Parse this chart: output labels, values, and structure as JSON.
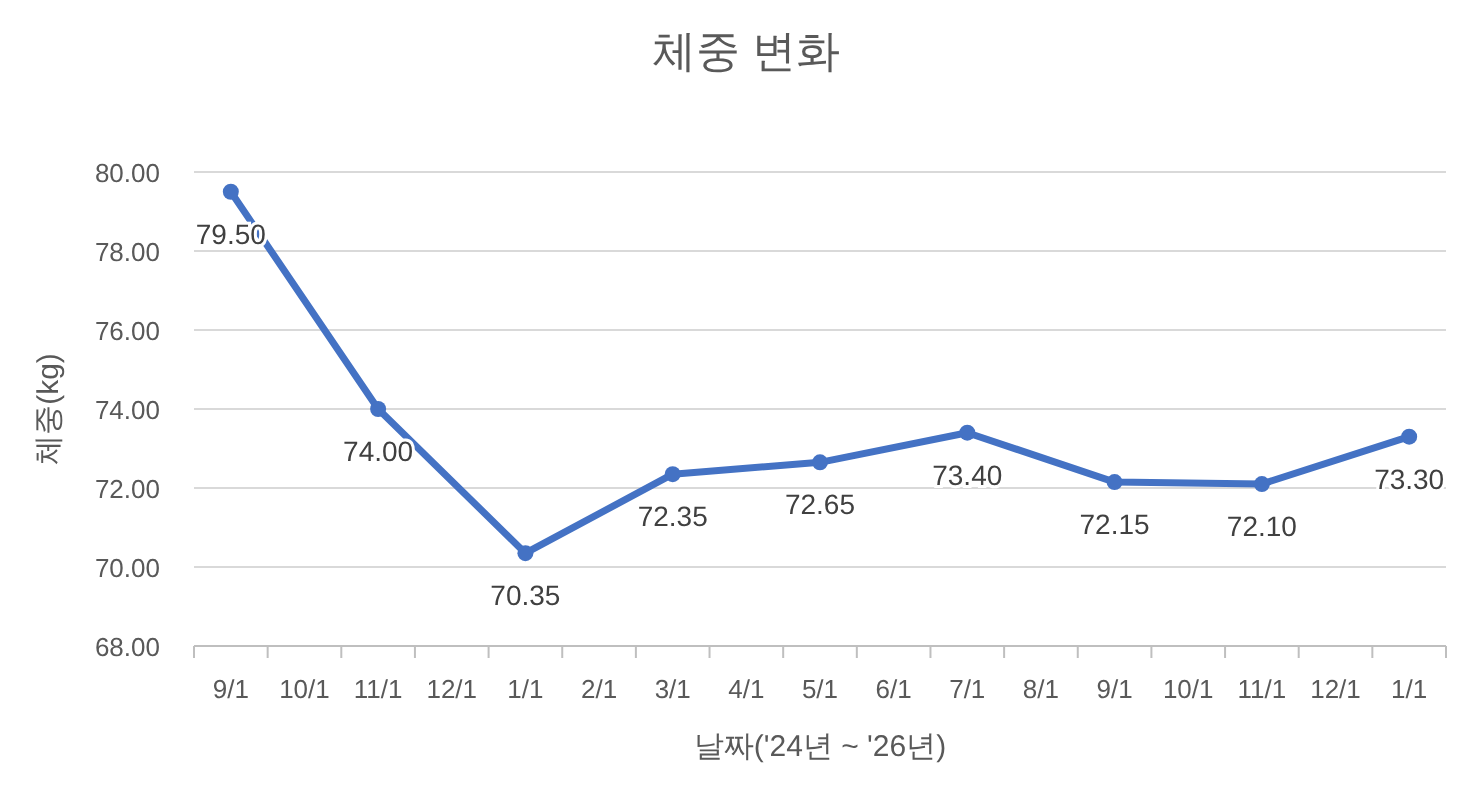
{
  "chart_data": {
    "type": "line",
    "title": "체중 변화",
    "xlabel": "날짜('24년 ~ '26년)",
    "ylabel": "체중(kg)",
    "categories": [
      "9/1",
      "10/1",
      "11/1",
      "12/1",
      "1/1",
      "2/1",
      "3/1",
      "4/1",
      "5/1",
      "6/1",
      "7/1",
      "8/1",
      "9/1",
      "10/1",
      "11/1",
      "12/1",
      "1/1"
    ],
    "series": [
      {
        "color": "#4472c4",
        "values": [
          79.5,
          null,
          74.0,
          null,
          70.35,
          null,
          72.35,
          null,
          72.65,
          null,
          73.4,
          null,
          72.15,
          null,
          72.1,
          null,
          73.3
        ],
        "value_labels": [
          "79.50",
          null,
          "74.00",
          null,
          "70.35",
          null,
          "72.35",
          null,
          "72.65",
          null,
          "73.40",
          null,
          "72.15",
          null,
          "72.10",
          null,
          "73.30"
        ]
      }
    ],
    "ylim": [
      68,
      80
    ],
    "yticks": [
      {
        "value": 68,
        "label": "68.00"
      },
      {
        "value": 70,
        "label": "70.00"
      },
      {
        "value": 72,
        "label": "72.00"
      },
      {
        "value": 74,
        "label": "74.00"
      },
      {
        "value": 76,
        "label": "76.00"
      },
      {
        "value": 78,
        "label": "78.00"
      },
      {
        "value": 80,
        "label": "80.00"
      }
    ],
    "grid": "y",
    "marker": "circle",
    "line_style": "solid"
  }
}
